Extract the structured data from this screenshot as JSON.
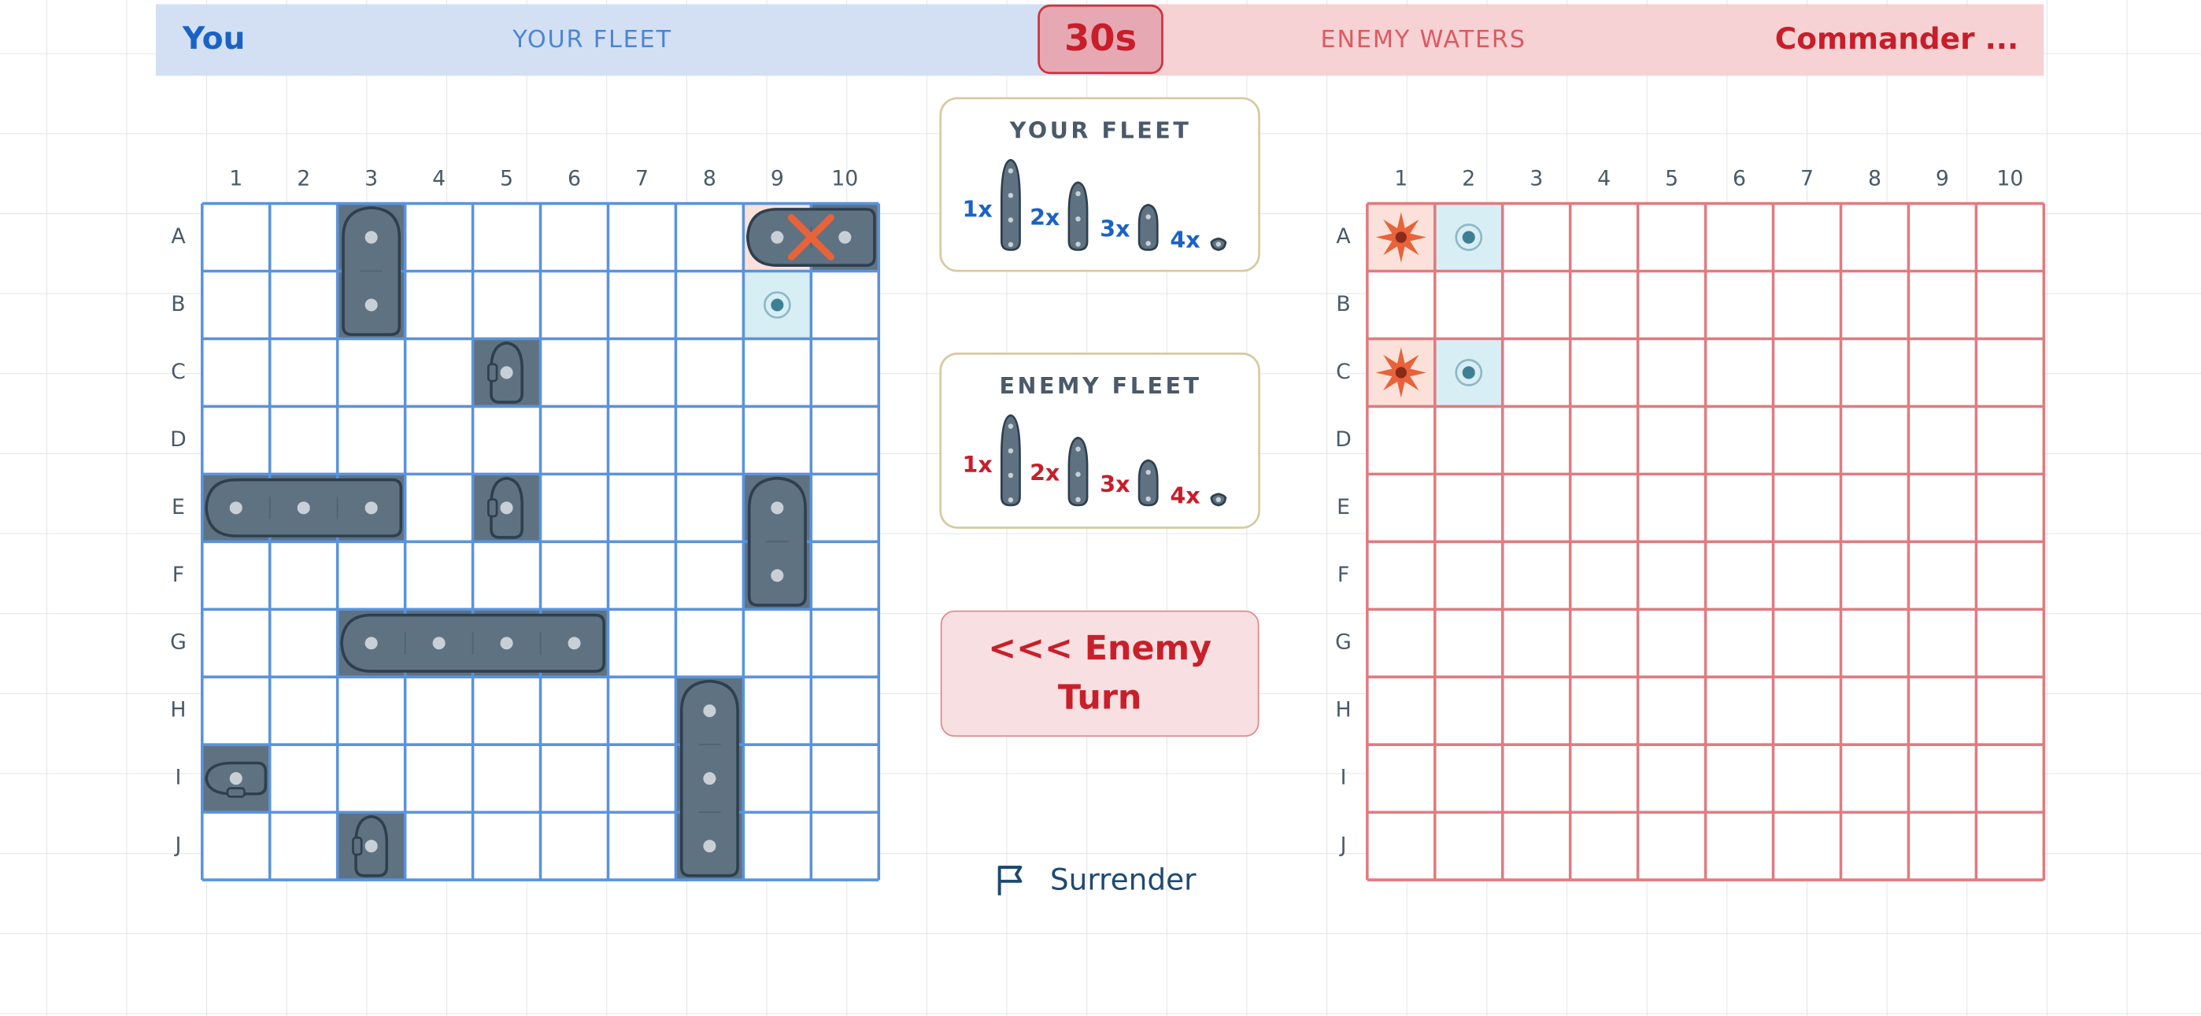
{
  "header": {
    "player": "You",
    "player_label": "YOUR FLEET",
    "timer": "30s",
    "enemy_label": "ENEMY WATERS",
    "opponent": "Commander ..."
  },
  "boards": {
    "columns": [
      "1",
      "2",
      "3",
      "4",
      "5",
      "6",
      "7",
      "8",
      "9",
      "10"
    ],
    "rows": [
      "A",
      "B",
      "C",
      "D",
      "E",
      "F",
      "G",
      "H",
      "I",
      "J"
    ]
  },
  "your_fleet": {
    "title": "YOUR FLEET",
    "counts": [
      "1x",
      "2x",
      "3x",
      "4x"
    ]
  },
  "enemy_fleet": {
    "title": "ENEMY FLEET",
    "counts": [
      "1x",
      "2x",
      "3x",
      "4x"
    ]
  },
  "turn_button": "<<< Enemy Turn",
  "surrender": "Surrender"
}
